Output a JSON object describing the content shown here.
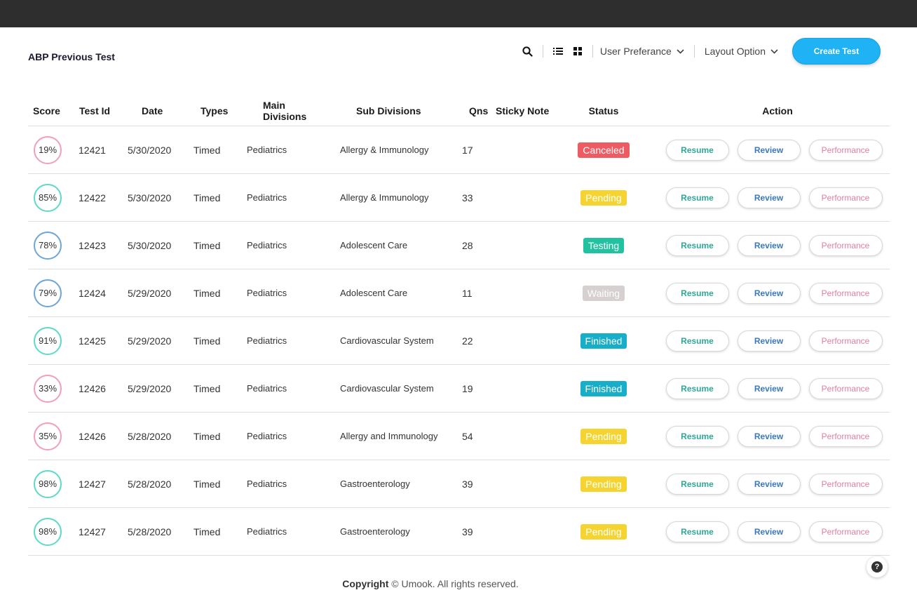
{
  "header": {
    "title": "ABP Previous Test",
    "user_preference_label": "User Preferance",
    "layout_option_label": "Layout Option",
    "create_button_label": "Create Test"
  },
  "table": {
    "columns": [
      "Score",
      "Test Id",
      "Date",
      "Types",
      "Main Divisions",
      "Sub Divisions",
      "Qns",
      "Sticky Note",
      "Status",
      "Action"
    ],
    "action_labels": {
      "resume": "Resume",
      "review": "Review",
      "performance": "Performance"
    },
    "rows": [
      {
        "score": "19%",
        "score_color": "#f0a0b8",
        "test_id": "12421",
        "date": "5/30/2020",
        "type": "Timed",
        "main_division": "Pediatrics",
        "sub_division": "Allergy & Immunology",
        "qns": "17",
        "sticky_note": "",
        "status": "Canceled",
        "status_color": "#ef5b63"
      },
      {
        "score": "85%",
        "score_color": "#5fd9c6",
        "test_id": "12422",
        "date": "5/30/2020",
        "type": "Timed",
        "main_division": "Pediatrics",
        "sub_division": "Allergy & Immunology",
        "qns": "33",
        "sticky_note": "",
        "status": "Pending",
        "status_color": "#f5d431"
      },
      {
        "score": "78%",
        "score_color": "#6ba6d6",
        "test_id": "12423",
        "date": "5/30/2020",
        "type": "Timed",
        "main_division": "Pediatrics",
        "sub_division": "Adolescent Care",
        "qns": "28",
        "sticky_note": "",
        "status": "Testing",
        "status_color": "#22c2a0"
      },
      {
        "score": "79%",
        "score_color": "#6ba6d6",
        "test_id": "12424",
        "date": "5/29/2020",
        "type": "Timed",
        "main_division": "Pediatrics",
        "sub_division": "Adolescent Care",
        "qns": "11",
        "sticky_note": "",
        "status": "Waiting",
        "status_color": "#d6d0d0"
      },
      {
        "score": "91%",
        "score_color": "#5fd9c6",
        "test_id": "12425",
        "date": "5/29/2020",
        "type": "Timed",
        "main_division": "Pediatrics",
        "sub_division": "Cardiovascular System",
        "qns": "22",
        "sticky_note": "",
        "status": "Finished",
        "status_color": "#17aec9"
      },
      {
        "score": "33%",
        "score_color": "#f0a0b8",
        "test_id": "12426",
        "date": "5/29/2020",
        "type": "Timed",
        "main_division": "Pediatrics",
        "sub_division": "Cardiovascular System",
        "qns": "19",
        "sticky_note": "",
        "status": "Finished",
        "status_color": "#17aec9"
      },
      {
        "score": "35%",
        "score_color": "#f0a0b8",
        "test_id": "12426",
        "date": "5/28/2020",
        "type": "Timed",
        "main_division": "Pediatrics",
        "sub_division": "Allergy and Immunology",
        "qns": "54",
        "sticky_note": "",
        "status": "Pending",
        "status_color": "#f5d431"
      },
      {
        "score": "98%",
        "score_color": "#5fd9c6",
        "test_id": "12427",
        "date": "5/28/2020",
        "type": "Timed",
        "main_division": "Pediatrics",
        "sub_division": "Gastroenterology",
        "qns": "39",
        "sticky_note": "",
        "status": "Pending",
        "status_color": "#f5d431"
      },
      {
        "score": "98%",
        "score_color": "#5fd9c6",
        "test_id": "12427",
        "date": "5/28/2020",
        "type": "Timed",
        "main_division": "Pediatrics",
        "sub_division": "Gastroenterology",
        "qns": "39",
        "sticky_note": "",
        "status": "Pending",
        "status_color": "#f5d431"
      }
    ]
  },
  "colors": {
    "resume_text": "#2fa896",
    "review_text": "#3a78c2",
    "performance_text": "#e17ea4",
    "accent": "#1fb2f5"
  },
  "icons": {
    "search": "search-icon",
    "list_view": "list-view-icon",
    "grid_view": "grid-view-icon",
    "dropdown": "chevron-down-icon",
    "help": "help-icon"
  },
  "footer": {
    "copyright_bold": "Copyright",
    "copyright_rest": "© Umook. All rights reserved."
  },
  "help": {
    "label": "?"
  }
}
